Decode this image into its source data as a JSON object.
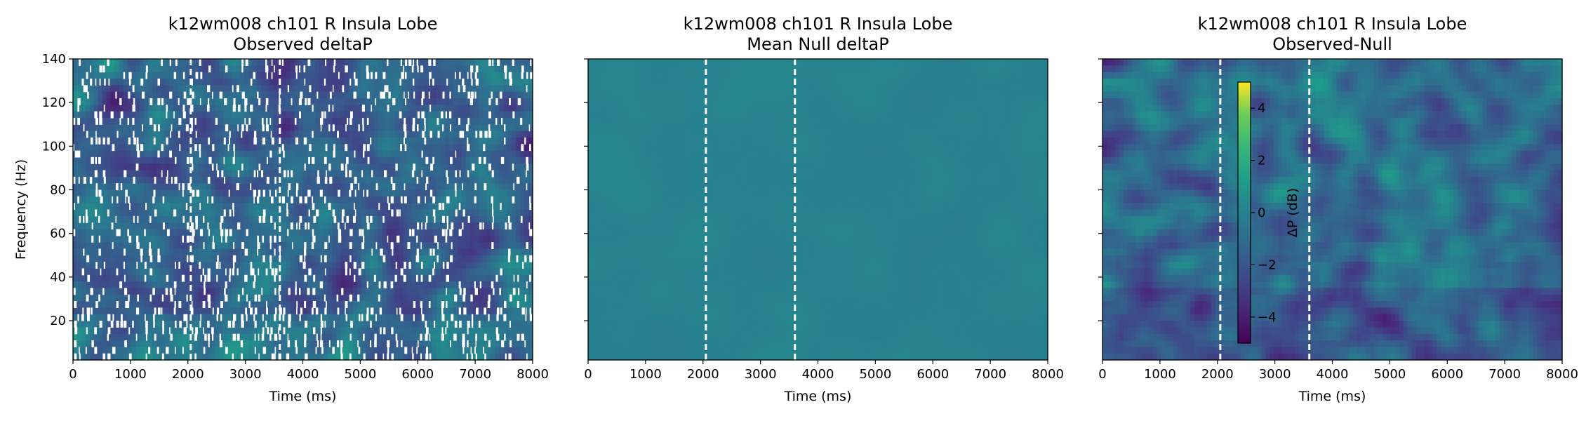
{
  "chart_data": [
    {
      "type": "heatmap",
      "title": [
        "k12wm008 ch101 R Insula Lobe",
        "Observed deltaP"
      ],
      "xlabel": "Time (ms)",
      "ylabel": "Frequency (Hz)",
      "xlim": [
        0,
        8000
      ],
      "ylim": [
        2,
        140
      ],
      "xticks": [
        0,
        1000,
        2000,
        3000,
        4000,
        5000,
        6000,
        7000,
        8000
      ],
      "yticks": [
        20,
        40,
        60,
        80,
        100,
        120,
        140
      ],
      "event_lines_ms": [
        2050,
        3600
      ],
      "masked_cells_white": true,
      "colormap": "viridis"
    },
    {
      "type": "heatmap",
      "title": [
        "k12wm008 ch101 R Insula Lobe",
        "Mean Null deltaP"
      ],
      "xlabel": "Time (ms)",
      "ylabel": "",
      "xlim": [
        0,
        8000
      ],
      "ylim": [
        2,
        140
      ],
      "xticks": [
        0,
        1000,
        2000,
        3000,
        4000,
        5000,
        6000,
        7000,
        8000
      ],
      "yticks": [
        20,
        40,
        60,
        80,
        100,
        120,
        140
      ],
      "event_lines_ms": [
        2050,
        3600
      ],
      "colormap": "viridis"
    },
    {
      "type": "heatmap",
      "title": [
        "k12wm008 ch101 R Insula Lobe",
        "Observed-Null"
      ],
      "xlabel": "Time (ms)",
      "ylabel": "",
      "xlim": [
        0,
        8000
      ],
      "ylim": [
        2,
        140
      ],
      "xticks": [
        0,
        1000,
        2000,
        3000,
        4000,
        5000,
        6000,
        7000,
        8000
      ],
      "yticks": [
        20,
        40,
        60,
        80,
        100,
        120,
        140
      ],
      "event_lines_ms": [
        2050,
        3600
      ],
      "colormap": "viridis",
      "colorbar": {
        "label": "ΔP (dB)",
        "range": [
          -5,
          5
        ],
        "ticks": [
          -4,
          -2,
          0,
          2,
          4
        ],
        "tick_labels": [
          "−4",
          "−2",
          "0",
          "2",
          "4"
        ]
      }
    }
  ],
  "colors": {
    "event_line": "#ffffff",
    "viridis_low": "#440154",
    "viridis_mid": "#21918c",
    "viridis_high": "#fde725"
  }
}
